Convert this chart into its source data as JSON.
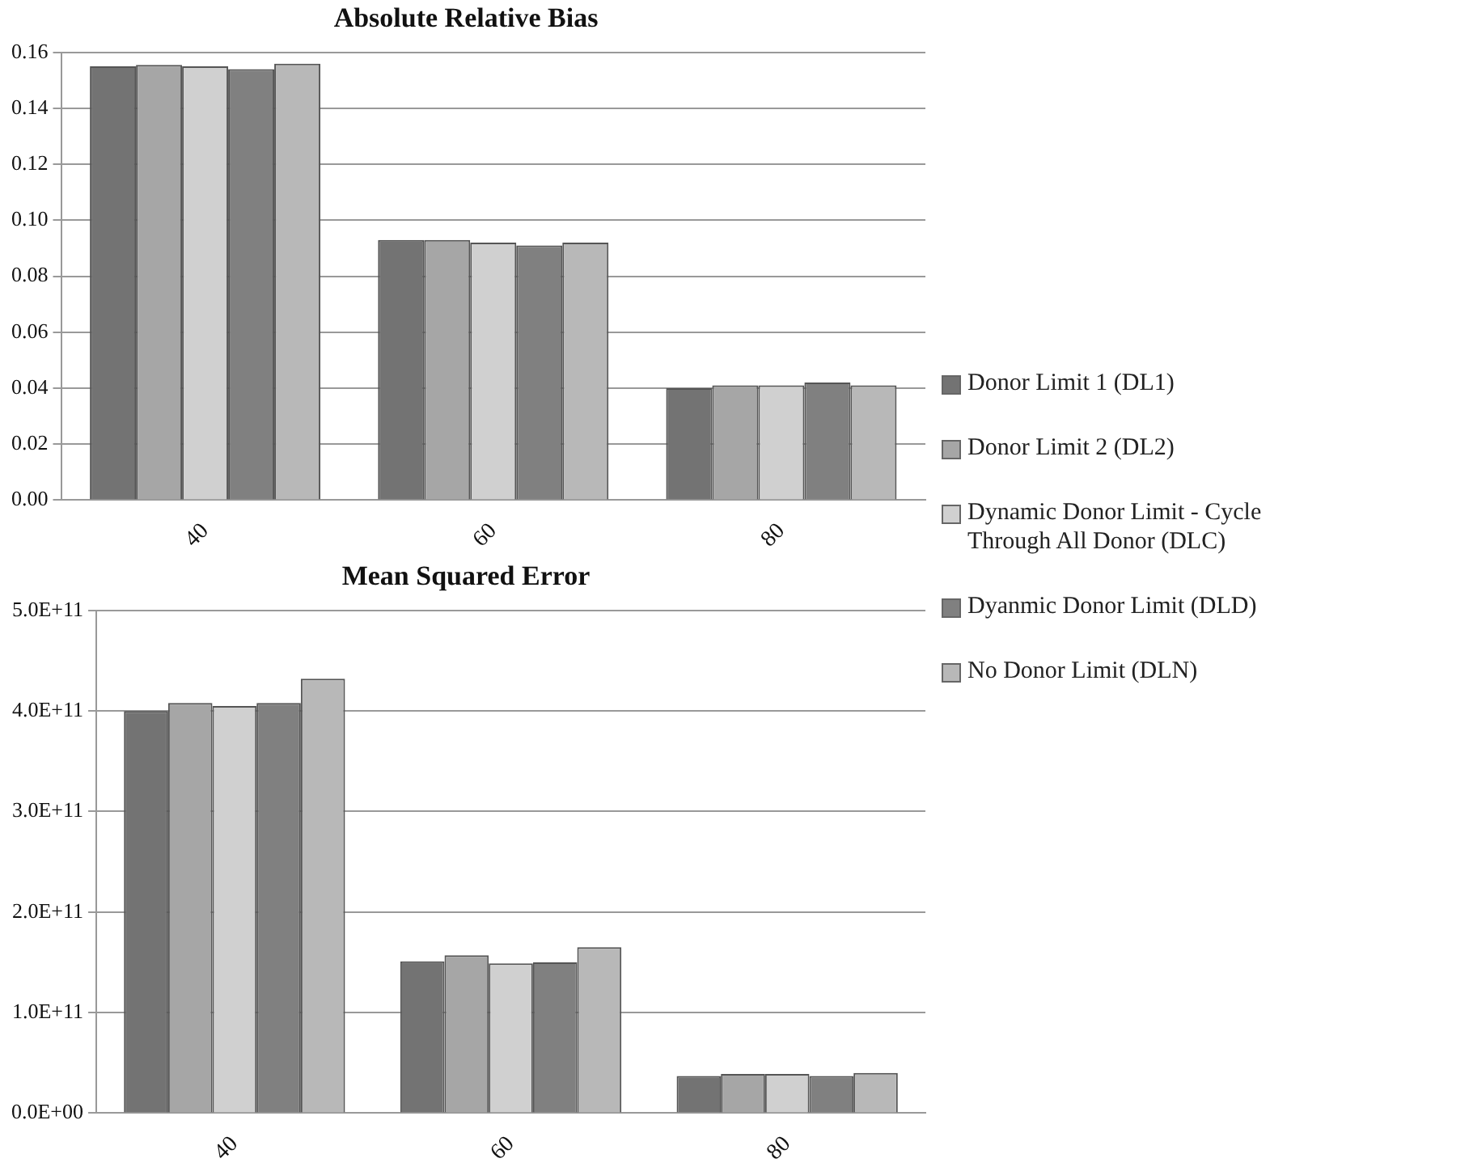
{
  "chart_data": [
    {
      "type": "bar",
      "title": "Absolute Relative Bias",
      "categories": [
        "40",
        "60",
        "80"
      ],
      "series": [
        {
          "name": "Donor Limit 1 (DL1)",
          "color": "#737373",
          "values": [
            0.155,
            0.093,
            0.04
          ]
        },
        {
          "name": "Donor Limit 2 (DL2)",
          "color": "#a6a6a6",
          "values": [
            0.1555,
            0.093,
            0.041
          ]
        },
        {
          "name": "Dynamic Donor Limit - Cycle Through All Donor (DLC)",
          "color": "#d0d0d0",
          "values": [
            0.155,
            0.092,
            0.041
          ]
        },
        {
          "name": "Dyanmic Donor Limit (DLD)",
          "color": "#808080",
          "values": [
            0.154,
            0.091,
            0.042
          ]
        },
        {
          "name": "No Donor Limit (DLN)",
          "color": "#b8b8b8",
          "values": [
            0.156,
            0.092,
            0.041
          ]
        }
      ],
      "ylim": [
        0,
        0.16
      ],
      "yticks": [
        {
          "value": 0,
          "label": "0.00"
        },
        {
          "value": 0.02,
          "label": "0.02"
        },
        {
          "value": 0.04,
          "label": "0.04"
        },
        {
          "value": 0.06,
          "label": "0.06"
        },
        {
          "value": 0.08,
          "label": "0.08"
        },
        {
          "value": 0.1,
          "label": "0.10"
        },
        {
          "value": 0.12,
          "label": "0.12"
        },
        {
          "value": 0.14,
          "label": "0.14"
        },
        {
          "value": 0.16,
          "label": "0.16"
        }
      ],
      "grid": "y",
      "legend": "right"
    },
    {
      "type": "bar",
      "title": "Mean Squared Error",
      "categories": [
        "40",
        "60",
        "80"
      ],
      "series": [
        {
          "color": "#737373",
          "values": [
            400000000000,
            151000000000,
            37000000000
          ]
        },
        {
          "color": "#a6a6a6",
          "values": [
            408000000000,
            157000000000,
            39000000000
          ]
        },
        {
          "color": "#d0d0d0",
          "values": [
            405000000000,
            149000000000,
            39000000000
          ]
        },
        {
          "color": "#808080",
          "values": [
            408000000000,
            150000000000,
            37000000000
          ]
        },
        {
          "color": "#b8b8b8",
          "values": [
            432000000000,
            165000000000,
            40000000000
          ]
        }
      ],
      "ylim": [
        0,
        500000000000
      ],
      "yticks": [
        {
          "value": 0,
          "label": "0.0E+00"
        },
        {
          "value": 100000000000,
          "label": "1.0E+11"
        },
        {
          "value": 200000000000,
          "label": "2.0E+11"
        },
        {
          "value": 300000000000,
          "label": "3.0E+11"
        },
        {
          "value": 400000000000,
          "label": "4.0E+11"
        },
        {
          "value": 500000000000,
          "label": "5.0E+11"
        }
      ],
      "grid": "y"
    }
  ]
}
